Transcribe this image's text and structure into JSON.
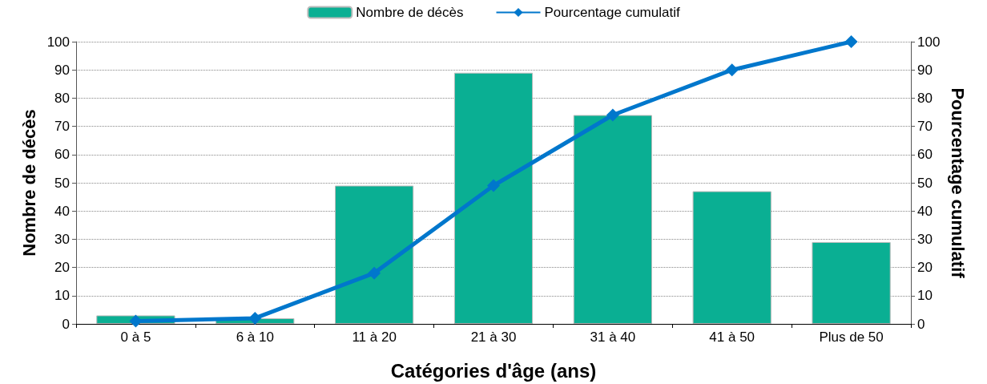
{
  "chart_data": {
    "type": "bar",
    "categories": [
      "0 à 5",
      "6 à 10",
      "11 à 20",
      "21 à 30",
      "31 à 40",
      "41 à 50",
      "Plus de 50"
    ],
    "series": [
      {
        "name": "Nombre de décès",
        "color": "#0aaf93",
        "values": [
          3,
          2,
          49,
          89,
          74,
          47,
          29
        ]
      },
      {
        "name": "Pourcentage cumulatif",
        "type": "line",
        "axis": "y2",
        "color": "#0077cc",
        "marker": "diamond",
        "values": [
          1,
          2,
          18,
          49,
          74,
          90,
          100
        ]
      }
    ],
    "xlabel": "Catégories d'âge (ans)",
    "ylabel": "Nombre de décès",
    "y2label": "Pourcentage cumulatif",
    "ylim": [
      0,
      100
    ],
    "yticks": [
      0,
      10,
      20,
      30,
      40,
      50,
      60,
      70,
      80,
      90,
      100
    ],
    "y2lim": [
      0,
      100
    ],
    "y2ticks": [
      0,
      10,
      20,
      30,
      40,
      50,
      60,
      70,
      80,
      90,
      100
    ],
    "grid": "y",
    "legend": "top"
  }
}
